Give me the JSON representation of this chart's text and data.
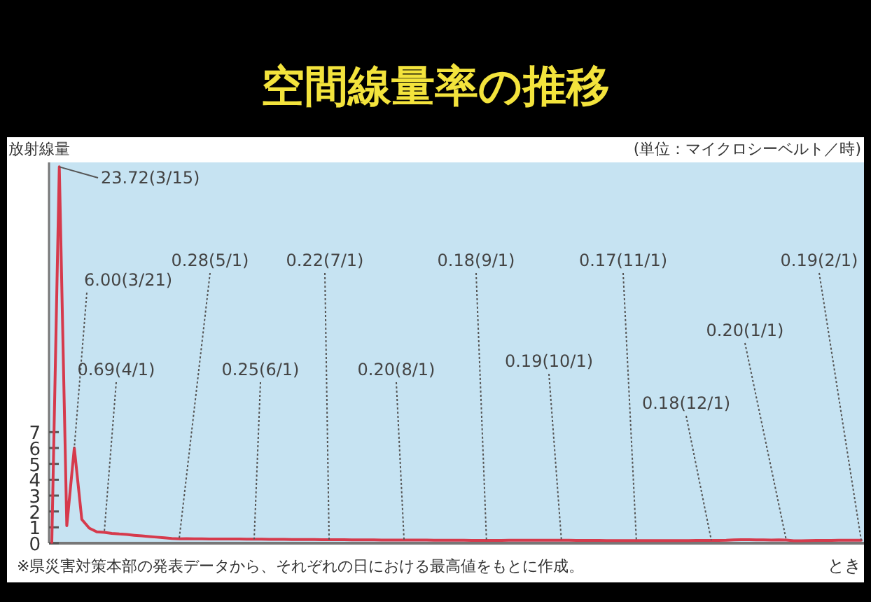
{
  "chart_data": {
    "type": "line",
    "title": "空間線量率の推移",
    "ylabel": "放射線量",
    "xlabel": "とき",
    "color": "#d63a4c",
    "tick_labels": "y",
    "ylim": [
      0,
      24
    ],
    "yticks": [
      0,
      1,
      2,
      3,
      4,
      5,
      6,
      7
    ],
    "categories": [
      null,
      null,
      null,
      null,
      null,
      null,
      null,
      null,
      null,
      null,
      null,
      null,
      null,
      null,
      null,
      null,
      null,
      null,
      null,
      null,
      null,
      null,
      null,
      null,
      null,
      null,
      null,
      null,
      null,
      null,
      null,
      null,
      null,
      null,
      null,
      null,
      null,
      null,
      null,
      null,
      null,
      null,
      null,
      null,
      null,
      null,
      null,
      null,
      null,
      null,
      null,
      null,
      null,
      null,
      null,
      null,
      null,
      null,
      null,
      null,
      null,
      null,
      null,
      null,
      null,
      null,
      null,
      null,
      null,
      null,
      null,
      null,
      null,
      null,
      null,
      null,
      null,
      null,
      null,
      null,
      null,
      null,
      null,
      null,
      null,
      null,
      null,
      null,
      null,
      null,
      null,
      null,
      null,
      null,
      null,
      null,
      null,
      null,
      null,
      null,
      null,
      null,
      null,
      null,
      null,
      null,
      null,
      null,
      null
    ],
    "values": [
      0.05,
      23.72,
      1.1,
      6.0,
      1.5,
      0.95,
      0.72,
      0.68,
      0.62,
      0.58,
      0.55,
      0.5,
      0.46,
      0.42,
      0.38,
      0.34,
      0.3,
      0.28,
      0.29,
      0.28,
      0.28,
      0.27,
      0.27,
      0.26,
      0.26,
      0.26,
      0.25,
      0.25,
      0.25,
      0.24,
      0.24,
      0.24,
      0.23,
      0.23,
      0.23,
      0.23,
      0.22,
      0.22,
      0.22,
      0.22,
      0.21,
      0.21,
      0.21,
      0.21,
      0.2,
      0.2,
      0.2,
      0.2,
      0.2,
      0.2,
      0.2,
      0.19,
      0.19,
      0.19,
      0.19,
      0.19,
      0.18,
      0.18,
      0.18,
      0.18,
      0.18,
      0.19,
      0.19,
      0.19,
      0.19,
      0.19,
      0.19,
      0.19,
      0.19,
      0.19,
      0.18,
      0.18,
      0.18,
      0.18,
      0.17,
      0.17,
      0.17,
      0.17,
      0.17,
      0.17,
      0.17,
      0.17,
      0.17,
      0.17,
      0.17,
      0.17,
      0.18,
      0.18,
      0.18,
      0.18,
      0.19,
      0.21,
      0.22,
      0.22,
      0.21,
      0.21,
      0.2,
      0.21,
      0.2,
      0.15,
      0.16,
      0.17,
      0.18,
      0.18,
      0.18,
      0.19,
      0.19,
      0.19,
      0.19
    ],
    "annotations": [
      "23.72(3/15)",
      "6.00(3/21)",
      "0.69(4/1)",
      "0.28(5/1)",
      "0.25(6/1)",
      "0.22(7/1)",
      "0.20(8/1)",
      "0.18(9/1)",
      "0.19(10/1)",
      "0.17(11/1)",
      "0.18(12/1)",
      "0.20(1/1)",
      "0.19(2/1)",
      "(単位：マイクロシーベルト／時)",
      "※県災害対策本部の発表データから、それぞれの日における最高値をもとに作成。"
    ]
  }
}
